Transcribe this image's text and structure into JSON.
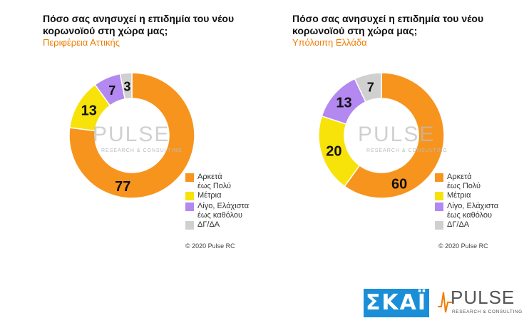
{
  "chart_data": [
    {
      "type": "pie",
      "title": "Πόσο σας ανησυχεί η επιδημία του νέου κορωνοϊού στη χώρα μας;",
      "subtitle": "Περιφέρεια Αττικής",
      "categories": [
        "Αρκετά έως Πολύ",
        "Μέτρια",
        "Λίγο, Ελάχιστα έως καθόλου",
        "ΔΓ/ΔΑ"
      ],
      "values": [
        77,
        13,
        7,
        3
      ],
      "colors": [
        "#f7941d",
        "#f7e30a",
        "#b388f0",
        "#d0d0d0"
      ],
      "legend_position": "bottom-right"
    },
    {
      "type": "pie",
      "title": "Πόσο σας ανησυχεί η επιδημία του νέου κορωνοϊού στη χώρα μας;",
      "subtitle": "Υπόλοιπη Ελλάδα",
      "categories": [
        "Αρκετά έως Πολύ",
        "Μέτρια",
        "Λίγο, Ελάχιστα έως καθόλου",
        "ΔΓ/ΔΑ"
      ],
      "values": [
        60,
        20,
        13,
        7
      ],
      "colors": [
        "#f7941d",
        "#f7e30a",
        "#b388f0",
        "#d0d0d0"
      ],
      "legend_position": "bottom-right"
    }
  ],
  "left": {
    "title_line1": "Πόσο σας ανησυχεί η επιδημία του νέου",
    "title_line2": "κορωνοϊού στη χώρα μας;",
    "subtitle": "Περιφέρεια Αττικής",
    "copyright": "© 2020 Pulse RC"
  },
  "right": {
    "title_line1": "Πόσο σας ανησυχεί η επιδημία του νέου",
    "title_line2": "κορωνοϊού στη χώρα μας;",
    "subtitle": "Υπόλοιπη Ελλάδα",
    "copyright": "© 2020 Pulse RC"
  },
  "legend": {
    "items": [
      {
        "line1": "Αρκετά",
        "line2": "έως Πολύ",
        "color": "#f7941d"
      },
      {
        "line1": "Μέτρια",
        "line2": "",
        "color": "#f7e30a"
      },
      {
        "line1": "Λίγο, Ελάχιστα",
        "line2": "έως καθόλου",
        "color": "#b388f0"
      },
      {
        "line1": "ΔΓ/ΔΑ",
        "line2": "",
        "color": "#d0d0d0"
      }
    ]
  },
  "watermark": {
    "word": "PULSE",
    "sub": "RESEARCH & CONSULTING"
  },
  "logos": {
    "skai": "ΣΚΑΪ",
    "pulse": "PULSE",
    "pulse_sub": "RESEARCH & CONSULTING"
  }
}
